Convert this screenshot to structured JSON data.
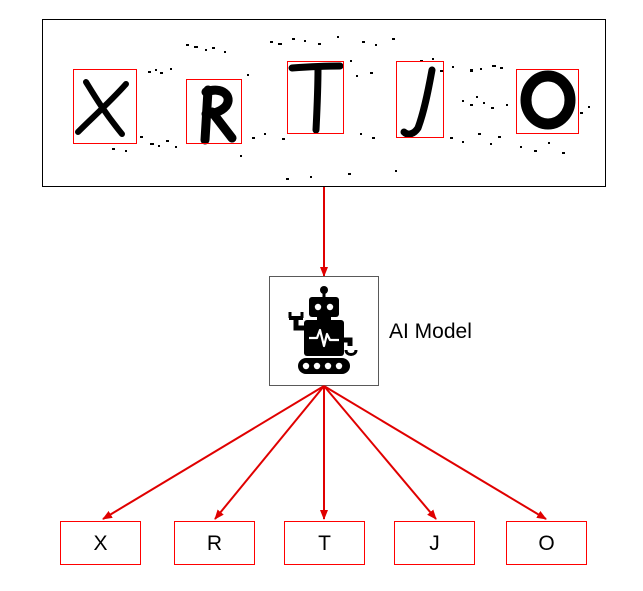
{
  "captcha": {
    "characters": [
      "X",
      "R",
      "T",
      "J",
      "O"
    ]
  },
  "model": {
    "label": "AI Model",
    "icon": "robot-icon"
  },
  "outputs": [
    "X",
    "R",
    "T",
    "J",
    "O"
  ],
  "colors": {
    "arrow": "#e00000",
    "box_border": "#ff0000",
    "frame": "#000000",
    "model_frame": "#595959"
  }
}
